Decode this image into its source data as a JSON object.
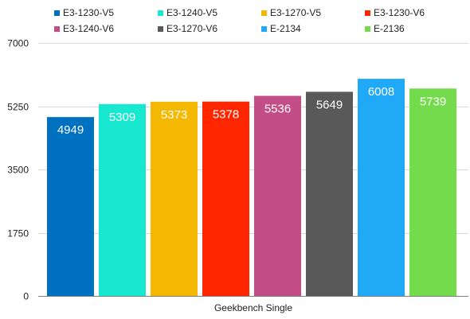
{
  "chart_data": {
    "type": "bar",
    "categories": [
      "Geekbench Single"
    ],
    "series": [
      {
        "name": "E3-1230-V5",
        "values": [
          4949
        ],
        "color": "#0070c0"
      },
      {
        "name": "E3-1240-V5",
        "values": [
          5309
        ],
        "color": "#19e8d0"
      },
      {
        "name": "E3-1270-V5",
        "values": [
          5373
        ],
        "color": "#f5b800"
      },
      {
        "name": "E3-1230-V6",
        "values": [
          5378
        ],
        "color": "#ff2600"
      },
      {
        "name": "E3-1240-V6",
        "values": [
          5536
        ],
        "color": "#c24d87"
      },
      {
        "name": "E3-1270-V6",
        "values": [
          5649
        ],
        "color": "#595959"
      },
      {
        "name": "E-2134",
        "values": [
          6008
        ],
        "color": "#1fa9f6"
      },
      {
        "name": "E-2136",
        "values": [
          5739
        ],
        "color": "#74db4c"
      }
    ],
    "title": "",
    "xlabel": "",
    "ylabel": "",
    "ylim": [
      0,
      7000
    ],
    "yticks": [
      "0",
      "1750",
      "3500",
      "5250",
      "7000"
    ],
    "grid": true,
    "legend_position": "top",
    "data_labels": [
      "4949",
      "5309",
      "5373",
      "5378",
      "5536",
      "5649",
      "6008",
      "5739"
    ]
  },
  "colors": {
    "grid": "#d9d9d9",
    "axis": "#7f7f7f",
    "label_text": "#222222",
    "data_label_text": "#ffffff"
  }
}
